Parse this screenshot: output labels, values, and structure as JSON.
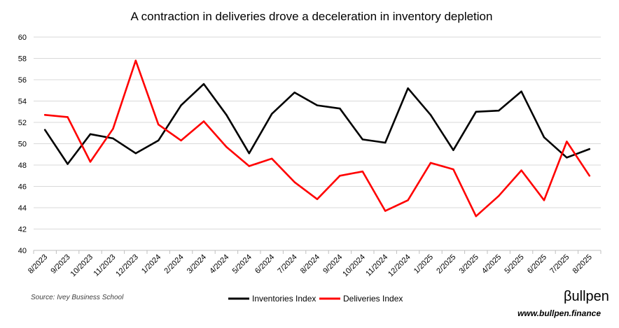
{
  "chart_data": {
    "type": "line",
    "title": "A contraction in deliveries drove a deceleration in inventory depletion",
    "xlabel": "",
    "ylabel": "",
    "categories": [
      "8/2023",
      "9/2023",
      "10/2023",
      "11/2023",
      "12/2023",
      "1/2024",
      "2/2024",
      "3/2024",
      "4/2024",
      "5/2024",
      "6/2024",
      "7/2024",
      "8/2024",
      "9/2024",
      "10/2024",
      "11/2024",
      "12/2024",
      "1/2025",
      "2/2025",
      "3/2025",
      "4/2025",
      "5/2025",
      "6/2025",
      "7/2025",
      "8/2025"
    ],
    "series": [
      {
        "name": "Inventories Index",
        "color": "#000000",
        "values": [
          51.3,
          48.1,
          50.9,
          50.5,
          49.1,
          50.3,
          53.6,
          55.6,
          52.7,
          49.1,
          52.8,
          54.8,
          53.6,
          53.3,
          50.4,
          50.1,
          55.2,
          52.7,
          49.4,
          53.0,
          53.1,
          54.9,
          50.6,
          48.7,
          49.5
        ]
      },
      {
        "name": "Deliveries Index",
        "color": "#ff0000",
        "values": [
          52.7,
          52.5,
          48.3,
          51.4,
          57.8,
          51.8,
          50.3,
          52.1,
          49.7,
          47.9,
          48.6,
          46.4,
          44.8,
          47.0,
          47.4,
          43.7,
          44.7,
          48.2,
          47.6,
          43.2,
          45.1,
          47.5,
          44.7,
          50.2,
          47.0
        ]
      }
    ],
    "ylim": [
      40,
      60
    ],
    "yticks": [
      40,
      42,
      44,
      46,
      48,
      50,
      52,
      54,
      56,
      58,
      60
    ],
    "grid": true,
    "legend_position": "bottom-center"
  },
  "source": "Source: Ivey Business School",
  "brand": {
    "logo": "βullpen",
    "url": "www.bullpen.finance"
  }
}
